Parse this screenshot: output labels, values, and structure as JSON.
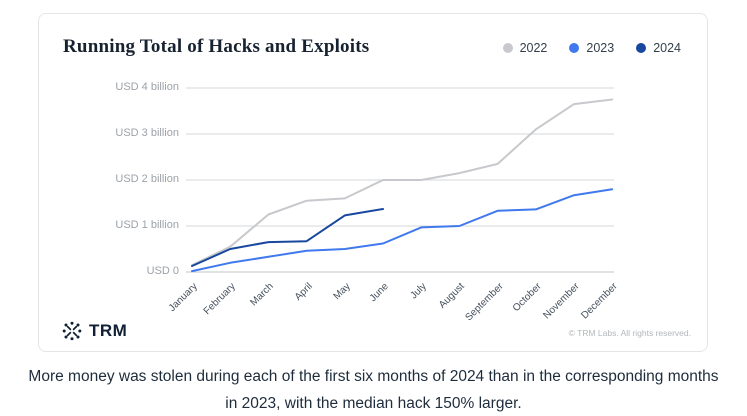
{
  "card": {
    "title": "Running Total of Hacks and Exploits",
    "footer": {
      "brand": "TRM",
      "copyright": "© TRM Labs. All rights reserved."
    }
  },
  "caption": "More money was stolen during each of the first six months of 2024 than in the corresponding months in 2023, with the median hack 150% larger.",
  "colors": {
    "series_2022": "#c7c9cc",
    "series_2023": "#4079ee",
    "series_2024": "#17479e",
    "gridline": "#d4d7d9",
    "zero_line": "#c3c6c9",
    "title_text": "#172230",
    "axis_label": "#9ca2a8"
  },
  "chart_data": {
    "type": "line",
    "title": "Running Total of Hacks and Exploits",
    "x_categories": [
      "January",
      "February",
      "March",
      "April",
      "May",
      "June",
      "July",
      "August",
      "September",
      "October",
      "November",
      "December"
    ],
    "y_tick_labels": [
      "USD 0",
      "USD 1 billion",
      "USD 2 billion",
      "USD 3 billion",
      "USD 4 billion"
    ],
    "y_tick_values": [
      0,
      1,
      2,
      3,
      4
    ],
    "y_axis_unit": "USD billions",
    "y_range": [
      0,
      4
    ],
    "grid": "horizontal",
    "legend_position": "top-right",
    "series": [
      {
        "name": "2022",
        "color": "#c7c9cc",
        "values_usd_billions": [
          0.15,
          0.55,
          1.25,
          1.55,
          1.6,
          2.0,
          2.0,
          2.15,
          2.35,
          3.1,
          3.65,
          3.75
        ]
      },
      {
        "name": "2023",
        "color": "#4079ee",
        "values_usd_billions": [
          0.02,
          0.2,
          0.33,
          0.46,
          0.5,
          0.62,
          0.97,
          1.0,
          1.33,
          1.36,
          1.67,
          1.8
        ]
      },
      {
        "name": "2024",
        "color": "#17479e",
        "values_usd_billions": [
          0.13,
          0.5,
          0.65,
          0.67,
          1.23,
          1.37
        ]
      }
    ]
  }
}
